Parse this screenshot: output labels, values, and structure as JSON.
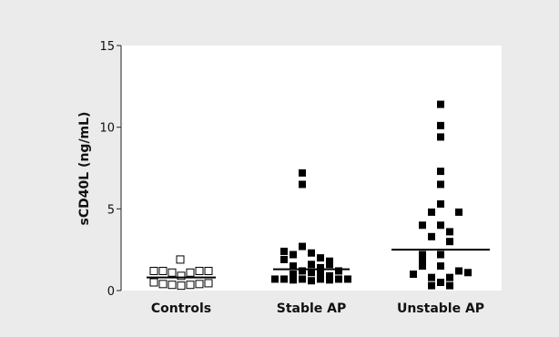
{
  "chart_data": {
    "type": "scatter",
    "title": "",
    "xlabel": "",
    "ylabel": "sCD40L (ng/mL)",
    "ylim": [
      0,
      15
    ],
    "yticks": [
      0,
      5,
      10,
      15
    ],
    "ytick_labels": [
      "0",
      "5",
      "10",
      "15"
    ],
    "grid": false,
    "categories": [
      "Controls",
      "Stable AP",
      "Unstable AP"
    ],
    "series": [
      {
        "category": "Controls",
        "marker": "open-square",
        "median": 0.8,
        "points": [
          {
            "offset": -3,
            "y": 1.2
          },
          {
            "offset": -3,
            "y": 0.5
          },
          {
            "offset": -2,
            "y": 1.2
          },
          {
            "offset": -2,
            "y": 0.4
          },
          {
            "offset": -1,
            "y": 1.1
          },
          {
            "offset": -1,
            "y": 0.35
          },
          {
            "offset": 0,
            "y": 0.9
          },
          {
            "offset": 0,
            "y": 0.3
          },
          {
            "offset": 1,
            "y": 1.1
          },
          {
            "offset": 1,
            "y": 0.35
          },
          {
            "offset": 2,
            "y": 1.2
          },
          {
            "offset": 2,
            "y": 0.4
          },
          {
            "offset": 3,
            "y": 1.2
          },
          {
            "offset": 3,
            "y": 0.45
          },
          {
            "offset": -0.1,
            "y": 1.9
          }
        ]
      },
      {
        "category": "Stable AP",
        "marker": "filled-square",
        "median": 1.3,
        "points": [
          {
            "offset": -1,
            "y": 7.2
          },
          {
            "offset": -1,
            "y": 6.5
          },
          {
            "offset": -3,
            "y": 2.4
          },
          {
            "offset": -2,
            "y": 2.2
          },
          {
            "offset": -1,
            "y": 2.7
          },
          {
            "offset": 0,
            "y": 2.3
          },
          {
            "offset": 1,
            "y": 2.0
          },
          {
            "offset": 2,
            "y": 1.8
          },
          {
            "offset": -3,
            "y": 1.9
          },
          {
            "offset": -2,
            "y": 1.5
          },
          {
            "offset": 0,
            "y": 1.6
          },
          {
            "offset": 1,
            "y": 1.4
          },
          {
            "offset": 2,
            "y": 1.6
          },
          {
            "offset": 3,
            "y": 1.2
          },
          {
            "offset": -1,
            "y": 1.2
          },
          {
            "offset": 0,
            "y": 1.1
          },
          {
            "offset": 1,
            "y": 1.0
          },
          {
            "offset": -2,
            "y": 1.0
          },
          {
            "offset": 2,
            "y": 0.9
          },
          {
            "offset": -4,
            "y": 0.7
          },
          {
            "offset": -3,
            "y": 0.7
          },
          {
            "offset": -2,
            "y": 0.65
          },
          {
            "offset": -1,
            "y": 0.7
          },
          {
            "offset": 0,
            "y": 0.6
          },
          {
            "offset": 1,
            "y": 0.7
          },
          {
            "offset": 2,
            "y": 0.65
          },
          {
            "offset": 3,
            "y": 0.7
          },
          {
            "offset": 4,
            "y": 0.7
          }
        ]
      },
      {
        "category": "Unstable AP",
        "marker": "filled-square",
        "median": 2.5,
        "points": [
          {
            "offset": 0,
            "y": 11.4
          },
          {
            "offset": 0,
            "y": 10.1
          },
          {
            "offset": 0,
            "y": 9.4
          },
          {
            "offset": 0,
            "y": 7.3
          },
          {
            "offset": 0,
            "y": 6.5
          },
          {
            "offset": 0,
            "y": 5.3
          },
          {
            "offset": -1,
            "y": 4.8
          },
          {
            "offset": 2,
            "y": 4.8
          },
          {
            "offset": -2,
            "y": 4.0
          },
          {
            "offset": 0,
            "y": 4.0
          },
          {
            "offset": 1,
            "y": 3.6
          },
          {
            "offset": -1,
            "y": 3.3
          },
          {
            "offset": 1,
            "y": 3.0
          },
          {
            "offset": -2,
            "y": 2.2
          },
          {
            "offset": 0,
            "y": 2.2
          },
          {
            "offset": -2,
            "y": 1.8
          },
          {
            "offset": -2,
            "y": 1.5
          },
          {
            "offset": 0,
            "y": 1.5
          },
          {
            "offset": 2,
            "y": 1.2
          },
          {
            "offset": -3,
            "y": 1.0
          },
          {
            "offset": 3,
            "y": 1.1
          },
          {
            "offset": -1,
            "y": 0.8
          },
          {
            "offset": 1,
            "y": 0.8
          },
          {
            "offset": 0,
            "y": 0.5
          },
          {
            "offset": -1,
            "y": 0.3
          },
          {
            "offset": 1,
            "y": 0.3
          }
        ]
      }
    ],
    "colors": {
      "background": "#ebebeb",
      "plot_background": "#ffffff",
      "marker": "#000000"
    }
  }
}
